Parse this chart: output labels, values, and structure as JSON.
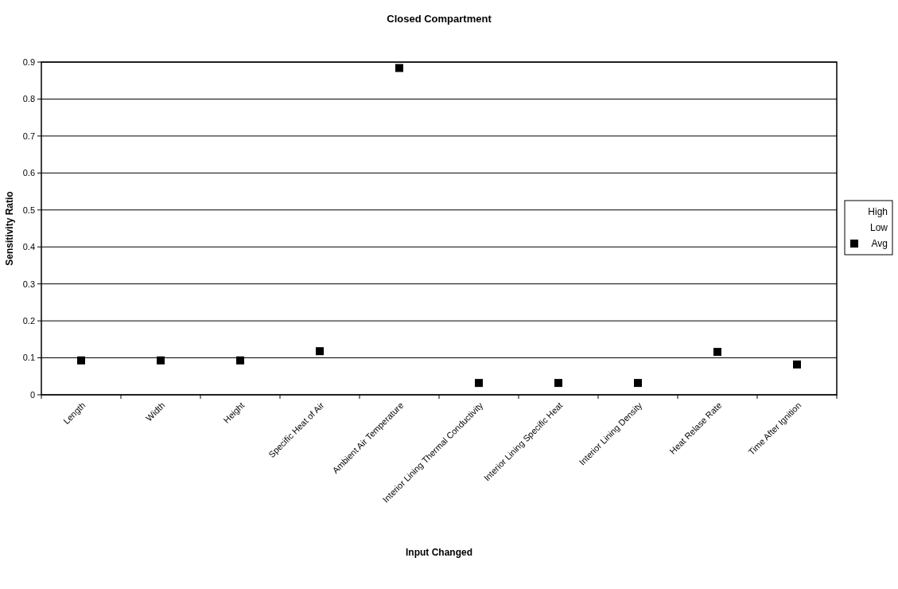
{
  "chart_data": {
    "type": "scatter",
    "title": "Closed Compartment",
    "xlabel": "Input Changed",
    "ylabel": "Sensitivity Ratio",
    "categories": [
      "Length",
      "Width",
      "Height",
      "Specific Heat of Air",
      "Ambient Air Temperature",
      "Interior Lining Thermal Conductivity",
      "Interior Lining Specific Heat",
      "Interior Lining Density",
      "Heat Relase Rate",
      "Time After Ignition"
    ],
    "series": [
      {
        "name": "High",
        "color": "#000000",
        "marker": "none",
        "values": [
          null,
          null,
          null,
          null,
          null,
          null,
          null,
          null,
          null,
          null
        ]
      },
      {
        "name": "Low",
        "color": "#000000",
        "marker": "none",
        "values": [
          null,
          null,
          null,
          null,
          null,
          null,
          null,
          null,
          null,
          null
        ]
      },
      {
        "name": "Avg",
        "color": "#000000",
        "marker": "square",
        "values": [
          0.093,
          0.093,
          0.093,
          0.118,
          0.884,
          0.032,
          0.032,
          0.032,
          0.116,
          0.082
        ]
      }
    ],
    "ylim": [
      0,
      0.9
    ],
    "yticks": [
      0,
      0.1,
      0.2,
      0.3,
      0.4,
      0.5,
      0.6,
      0.7,
      0.8,
      0.9
    ],
    "grid": "y",
    "legend": "right"
  }
}
